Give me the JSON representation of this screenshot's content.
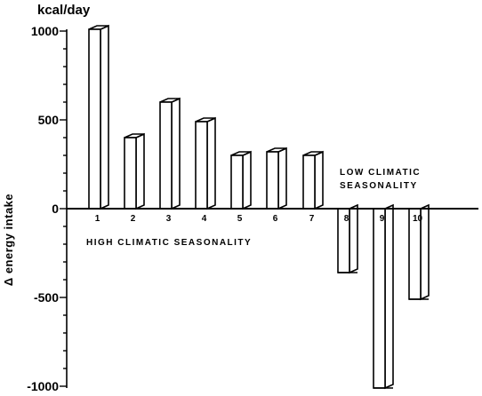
{
  "chart_data": {
    "type": "bar",
    "title": "",
    "unit_label": "kcal/day",
    "ylabel": "Δ energy intake",
    "xlabel": "",
    "ylim": [
      -1000,
      1000
    ],
    "yticks": [
      1000,
      500,
      0,
      -500,
      -1000
    ],
    "grid": false,
    "bar_style": "3d-outline",
    "categories": [
      "1",
      "2",
      "3",
      "4",
      "5",
      "6",
      "7",
      "8",
      "9",
      "10"
    ],
    "values": [
      1010,
      400,
      600,
      490,
      300,
      320,
      300,
      -360,
      -1010,
      -510
    ],
    "annotations": {
      "high": "HIGH CLIMATIC SEASONALITY",
      "low_line1": "LOW  CLIMATIC",
      "low_line2": "SEASONALITY"
    }
  }
}
